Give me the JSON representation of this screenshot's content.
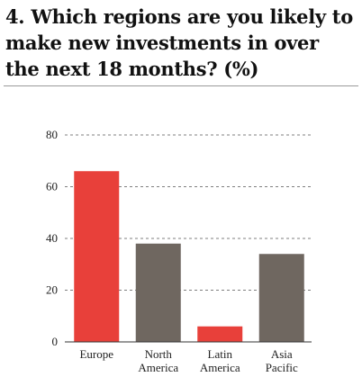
{
  "title": "4. Which regions are you likely to make new investments in over the next 18 months? (%)",
  "chart_data": {
    "type": "bar",
    "title": "4. Which regions are you likely to make new investments in over the next 18 months? (%)",
    "categories": [
      [
        "Europe"
      ],
      [
        "North",
        "America"
      ],
      [
        "Latin",
        "America"
      ],
      [
        "Asia",
        "Pacific"
      ]
    ],
    "values": [
      66,
      38,
      6,
      34
    ],
    "bar_colors": [
      "#e8403a",
      "#6f6760",
      "#e8403a",
      "#6f6760"
    ],
    "ylim": [
      0,
      80
    ],
    "yticks": [
      0,
      20,
      40,
      60,
      80
    ],
    "grid": true,
    "grid_style": "dashed"
  }
}
